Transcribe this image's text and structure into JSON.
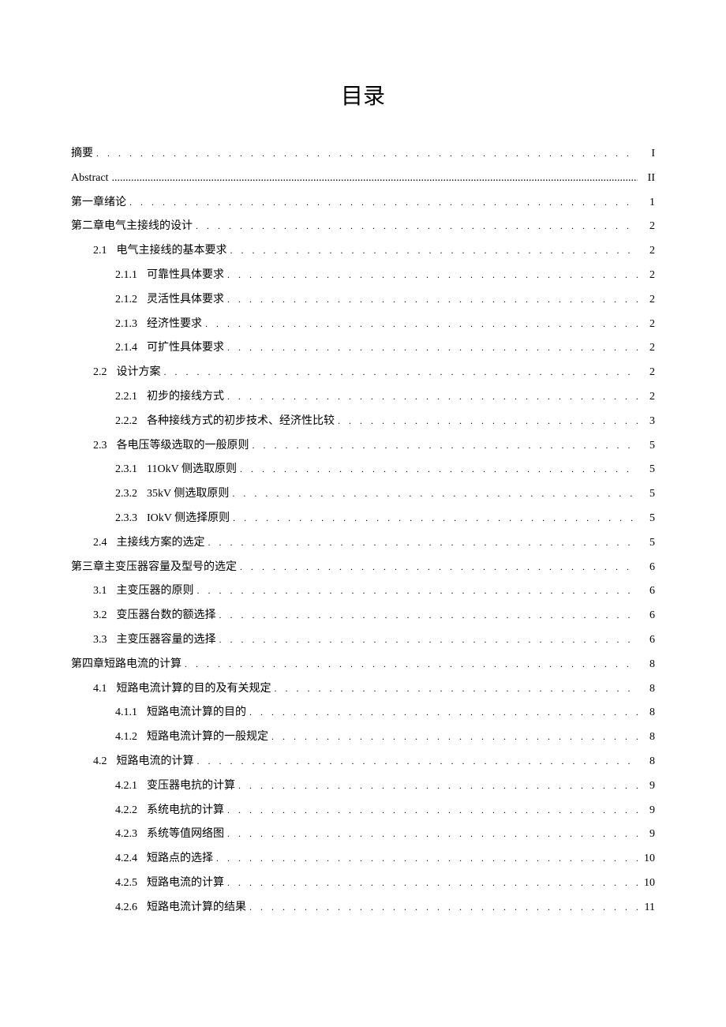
{
  "title": "目录",
  "entries": [
    {
      "level": 0,
      "num": "",
      "label": "摘要",
      "page": "I",
      "dotStyle": "zh"
    },
    {
      "level": 0,
      "num": "",
      "label": "Abstract",
      "page": "II",
      "dotStyle": "abstract",
      "labelClass": "abstract-text"
    },
    {
      "level": 0,
      "num": "",
      "label": "第一章绪论",
      "page": "1",
      "dotStyle": "zh"
    },
    {
      "level": 0,
      "num": "",
      "label": "第二章电气主接线的设计",
      "page": "2",
      "dotStyle": "zh"
    },
    {
      "level": 1,
      "num": "2.1",
      "label": "电气主接线的基本要求",
      "page": "2",
      "dotStyle": "zh"
    },
    {
      "level": 2,
      "num": "2.1.1",
      "label": "可靠性具体要求",
      "page": "2",
      "dotStyle": "zh"
    },
    {
      "level": 2,
      "num": "2.1.2",
      "label": "灵活性具体要求",
      "page": "2",
      "dotStyle": "zh"
    },
    {
      "level": 2,
      "num": "2.1.3",
      "label": "经济性要求",
      "page": "2",
      "dotStyle": "zh"
    },
    {
      "level": 2,
      "num": "2.1.4",
      "label": "可扩性具体要求",
      "page": "2",
      "dotStyle": "zh"
    },
    {
      "level": 1,
      "num": "2.2",
      "label": "设计方案",
      "page": "2",
      "dotStyle": "zh"
    },
    {
      "level": 2,
      "num": "2.2.1",
      "label": "初步的接线方式",
      "page": "2",
      "dotStyle": "zh"
    },
    {
      "level": 2,
      "num": "2.2.2",
      "label": "各种接线方式的初步技术、经济性比较",
      "page": "3",
      "dotStyle": "zh"
    },
    {
      "level": 1,
      "num": "2.3",
      "label": "各电压等级选取的一般原则",
      "page": "5",
      "dotStyle": "zh"
    },
    {
      "level": 2,
      "num": "2.3.1",
      "label": "11OkV 侧选取原则",
      "page": "5",
      "dotStyle": "zh"
    },
    {
      "level": 2,
      "num": "2.3.2",
      "label": "35kV 侧选取原则",
      "page": "5",
      "dotStyle": "zh"
    },
    {
      "level": 2,
      "num": "2.3.3",
      "label": "IOkV 侧选择原则",
      "page": "5",
      "dotStyle": "zh"
    },
    {
      "level": 1,
      "num": "2.4",
      "label": "主接线方案的选定",
      "page": "5",
      "dotStyle": "zh"
    },
    {
      "level": 0,
      "num": "",
      "label": "第三章主变压器容量及型号的选定",
      "page": "6",
      "dotStyle": "zh"
    },
    {
      "level": 1,
      "num": "3.1",
      "label": "主变压器的原则",
      "page": "6",
      "dotStyle": "zh"
    },
    {
      "level": 1,
      "num": "3.2",
      "label": "变压器台数的额选择",
      "page": "6",
      "dotStyle": "zh"
    },
    {
      "level": 1,
      "num": "3.3",
      "label": "主变压器容量的选择",
      "page": "6",
      "dotStyle": "zh"
    },
    {
      "level": 0,
      "num": "",
      "label": "第四章短路电流的计算",
      "page": "8",
      "dotStyle": "zh"
    },
    {
      "level": 1,
      "num": "4.1",
      "label": "短路电流计算的目的及有关规定",
      "page": "8",
      "dotStyle": "zh"
    },
    {
      "level": 2,
      "num": "4.1.1",
      "label": "短路电流计算的目的",
      "page": "8",
      "dotStyle": "zh"
    },
    {
      "level": 2,
      "num": "4.1.2",
      "label": "短路电流计算的一般规定",
      "page": "8",
      "dotStyle": "zh"
    },
    {
      "level": 1,
      "num": "4.2",
      "label": "短路电流的计算",
      "page": "8",
      "dotStyle": "zh"
    },
    {
      "level": 2,
      "num": "4.2.1",
      "label": "变压器电抗的计算",
      "page": "9",
      "dotStyle": "zh"
    },
    {
      "level": 2,
      "num": "4.2.2",
      "label": "系统电抗的计算",
      "page": "9",
      "dotStyle": "zh"
    },
    {
      "level": 2,
      "num": "4.2.3",
      "label": "系统等值网络图",
      "page": "9",
      "dotStyle": "zh"
    },
    {
      "level": 2,
      "num": "4.2.4",
      "label": "短路点的选择",
      "page": "10",
      "dotStyle": "zh"
    },
    {
      "level": 2,
      "num": "4.2.5",
      "label": "短路电流的计算",
      "page": "10",
      "dotStyle": "zh"
    },
    {
      "level": 2,
      "num": "4.2.6",
      "label": "短路电流计算的结果",
      "page": "11",
      "dotStyle": "zh"
    }
  ]
}
